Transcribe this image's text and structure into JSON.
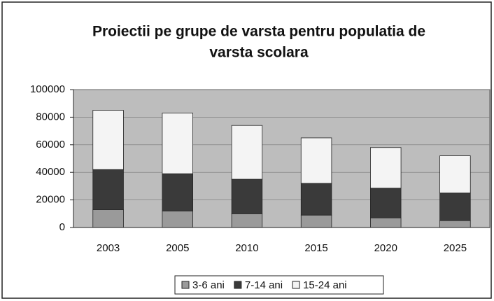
{
  "chart_data": {
    "type": "bar",
    "stacked": true,
    "title": "Proiectii pe grupe de varsta pentru populatia de",
    "subtitle": "varsta scolara",
    "categories": [
      "2003",
      "2005",
      "2010",
      "2015",
      "2020",
      "2025"
    ],
    "series": [
      {
        "name": "3-6 ani",
        "color": "#9a9a9a",
        "values": [
          13000,
          12000,
          10000,
          9000,
          7000,
          5000
        ]
      },
      {
        "name": "7-14 ani",
        "color": "#3a3a3a",
        "values": [
          29000,
          27000,
          25000,
          23000,
          21500,
          20000
        ]
      },
      {
        "name": "15-24 ani",
        "color": "#f4f4f4",
        "values": [
          43000,
          44000,
          39000,
          33000,
          29500,
          27000
        ]
      }
    ],
    "ylim": [
      0,
      100000
    ],
    "yticks": [
      0,
      20000,
      40000,
      60000,
      80000,
      100000
    ],
    "grid": true,
    "legend": "bottom"
  }
}
